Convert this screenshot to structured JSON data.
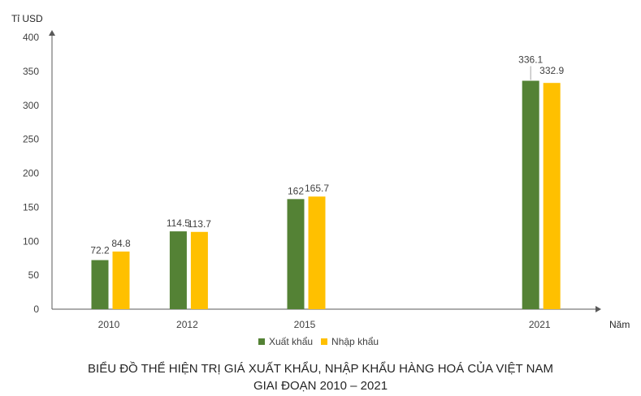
{
  "chart_data": {
    "type": "bar",
    "title_line1": "BIỂU ĐỒ THỂ HIỆN TRỊ GIÁ XUẤT KHẨU, NHẬP KHẨU HÀNG HOÁ CỦA VIỆT NAM",
    "title_line2": "GIAI ĐOẠN 2010 – 2021",
    "ylabel": "Tỉ USD",
    "xlabel": "Năm",
    "categories": [
      "2010",
      "2012",
      "2015",
      "2021"
    ],
    "x_is_time_scale": true,
    "ylim": [
      0,
      400
    ],
    "yticks": [
      "0",
      "50",
      "100",
      "150",
      "200",
      "250",
      "300",
      "350",
      "400"
    ],
    "grid": false,
    "legend_position": "bottom",
    "series": [
      {
        "name": "Xuất khẩu",
        "color": "#548235",
        "values": [
          72.2,
          114.5,
          162,
          336.1
        ],
        "labels": [
          "72.2",
          "114.5",
          "162",
          "336.1"
        ]
      },
      {
        "name": "Nhập khẩu",
        "color": "#FFC000",
        "values": [
          84.8,
          113.7,
          165.7,
          332.9
        ],
        "labels": [
          "84.8",
          "113.7",
          "165.7",
          "332.9"
        ]
      }
    ]
  }
}
